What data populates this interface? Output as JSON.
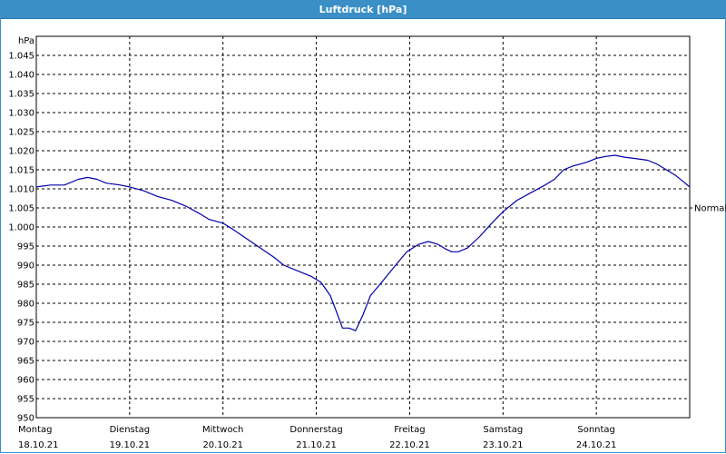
{
  "window": {
    "title": "Luftdruck [hPa]"
  },
  "chart_data": {
    "type": "line",
    "title": "Luftdruck [hPa]",
    "ylabel": "hPa",
    "xlabel": "",
    "ylim": [
      950,
      1050
    ],
    "yticks": [
      950,
      955,
      960,
      965,
      970,
      975,
      980,
      985,
      990,
      995,
      1000,
      1005,
      1010,
      1015,
      1020,
      1025,
      1030,
      1035,
      1040,
      1045
    ],
    "ytick_labels": [
      "950",
      "955",
      "960",
      "965",
      "970",
      "975",
      "980",
      "985",
      "990",
      "995",
      "1.000",
      "1.005",
      "1.010",
      "1.015",
      "1.020",
      "1.025",
      "1.030",
      "1.035",
      "1.040",
      "1.045"
    ],
    "xlim": [
      0,
      7
    ],
    "days": [
      {
        "weekday": "Montag",
        "date": "18.10.21"
      },
      {
        "weekday": "Dienstag",
        "date": "19.10.21"
      },
      {
        "weekday": "Mittwoch",
        "date": "20.10.21"
      },
      {
        "weekday": "Donnerstag",
        "date": "21.10.21"
      },
      {
        "weekday": "Freitag",
        "date": "22.10.21"
      },
      {
        "weekday": "Samstag",
        "date": "23.10.21"
      },
      {
        "weekday": "Sonntag",
        "date": "24.10.21"
      }
    ],
    "reference_line": {
      "label": "Normal",
      "value": 1005
    },
    "grid": true,
    "series": [
      {
        "color": "#0000aa",
        "points": [
          [
            0.0,
            1010.5
          ],
          [
            0.15,
            1011.0
          ],
          [
            0.3,
            1011.0
          ],
          [
            0.45,
            1012.5
          ],
          [
            0.55,
            1013.0
          ],
          [
            0.65,
            1012.5
          ],
          [
            0.75,
            1011.5
          ],
          [
            0.9,
            1011.0
          ],
          [
            1.0,
            1010.5
          ],
          [
            1.15,
            1009.5
          ],
          [
            1.3,
            1008.0
          ],
          [
            1.45,
            1007.0
          ],
          [
            1.6,
            1005.5
          ],
          [
            1.75,
            1003.5
          ],
          [
            1.85,
            1002.0
          ],
          [
            2.0,
            1001.0
          ],
          [
            2.1,
            999.5
          ],
          [
            2.25,
            997.0
          ],
          [
            2.4,
            994.5
          ],
          [
            2.55,
            992.0
          ],
          [
            2.65,
            990.0
          ],
          [
            2.8,
            988.5
          ],
          [
            2.95,
            987.0
          ],
          [
            3.05,
            985.5
          ],
          [
            3.15,
            982.0
          ],
          [
            3.22,
            977.5
          ],
          [
            3.28,
            973.5
          ],
          [
            3.35,
            973.5
          ],
          [
            3.42,
            972.8
          ],
          [
            3.5,
            977.0
          ],
          [
            3.58,
            982.0
          ],
          [
            3.7,
            985.5
          ],
          [
            3.85,
            990.0
          ],
          [
            3.97,
            993.5
          ],
          [
            4.1,
            995.5
          ],
          [
            4.2,
            996.2
          ],
          [
            4.3,
            995.5
          ],
          [
            4.38,
            994.3
          ],
          [
            4.45,
            993.5
          ],
          [
            4.52,
            993.5
          ],
          [
            4.62,
            994.5
          ],
          [
            4.75,
            997.5
          ],
          [
            4.88,
            1001.0
          ],
          [
            5.0,
            1004.0
          ],
          [
            5.15,
            1007.0
          ],
          [
            5.3,
            1009.0
          ],
          [
            5.45,
            1011.0
          ],
          [
            5.55,
            1012.5
          ],
          [
            5.65,
            1015.0
          ],
          [
            5.75,
            1016.0
          ],
          [
            5.9,
            1017.0
          ],
          [
            6.0,
            1018.0
          ],
          [
            6.1,
            1018.5
          ],
          [
            6.2,
            1018.8
          ],
          [
            6.3,
            1018.3
          ],
          [
            6.4,
            1018.0
          ],
          [
            6.55,
            1017.5
          ],
          [
            6.65,
            1016.5
          ],
          [
            6.75,
            1015.0
          ],
          [
            6.85,
            1013.5
          ],
          [
            6.95,
            1011.5
          ],
          [
            7.0,
            1010.5
          ]
        ]
      }
    ]
  }
}
